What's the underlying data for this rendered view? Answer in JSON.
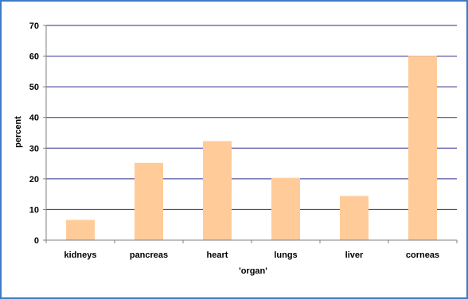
{
  "chart_data": {
    "type": "bar",
    "categories": [
      "kidneys",
      "pancreas",
      "heart",
      "lungs",
      "liver",
      "corneas"
    ],
    "values": [
      6.6,
      25.2,
      32.3,
      20.3,
      14.4,
      60.1
    ],
    "xlabel": "'organ'",
    "ylabel": "percent",
    "ylim": [
      0,
      70
    ],
    "yticks": [
      0,
      10,
      20,
      30,
      40,
      50,
      60,
      70
    ],
    "grid": true,
    "legend": "none",
    "colors": {
      "bar": "#ffcc99",
      "grid": "#2e2e8f",
      "axis": "#7f7f7f",
      "frame": "#3d7cc4"
    }
  }
}
